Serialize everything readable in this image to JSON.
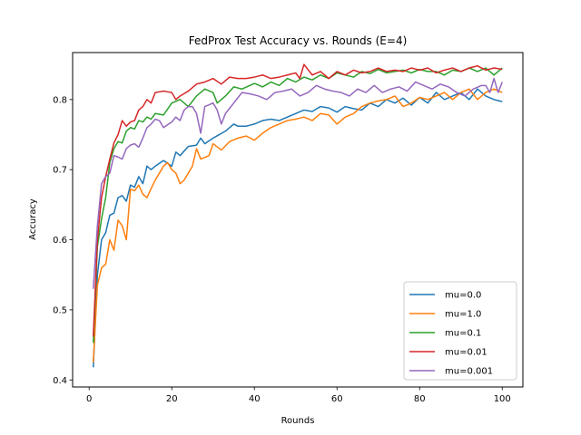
{
  "chart_data": {
    "type": "line",
    "title": "FedProx Test Accuracy vs. Rounds (E=4)",
    "xlabel": "Rounds",
    "ylabel": "Accuracy",
    "xlim": [
      -4,
      105
    ],
    "ylim": [
      0.39,
      0.867
    ],
    "xticks": [
      0,
      20,
      40,
      60,
      80,
      100
    ],
    "yticks": [
      0.4,
      0.5,
      0.6,
      0.7,
      0.8
    ],
    "xtick_labels": [
      "0",
      "20",
      "40",
      "60",
      "80",
      "100"
    ],
    "ytick_labels": [
      "0.4",
      "0.5",
      "0.6",
      "0.7",
      "0.8"
    ],
    "legend_position": "lower-right",
    "rounds": {
      "start": 1,
      "end": 100
    },
    "series": [
      {
        "name": "mu=0.0",
        "color": "#1f77b4",
        "anchors": [
          [
            1,
            0.418
          ],
          [
            2,
            0.55
          ],
          [
            3,
            0.6
          ],
          [
            4,
            0.61
          ],
          [
            5,
            0.635
          ],
          [
            6,
            0.638
          ],
          [
            7,
            0.66
          ],
          [
            8,
            0.663
          ],
          [
            9,
            0.655
          ],
          [
            10,
            0.678
          ],
          [
            11,
            0.675
          ],
          [
            12,
            0.69
          ],
          [
            13,
            0.68
          ],
          [
            14,
            0.705
          ],
          [
            15,
            0.7
          ],
          [
            16,
            0.705
          ],
          [
            18,
            0.713
          ],
          [
            20,
            0.705
          ],
          [
            21,
            0.725
          ],
          [
            22,
            0.72
          ],
          [
            24,
            0.733
          ],
          [
            26,
            0.735
          ],
          [
            27,
            0.745
          ],
          [
            28,
            0.737
          ],
          [
            30,
            0.745
          ],
          [
            33,
            0.755
          ],
          [
            35,
            0.765
          ],
          [
            36,
            0.762
          ],
          [
            38,
            0.762
          ],
          [
            40,
            0.765
          ],
          [
            42,
            0.77
          ],
          [
            44,
            0.772
          ],
          [
            46,
            0.77
          ],
          [
            48,
            0.775
          ],
          [
            50,
            0.78
          ],
          [
            52,
            0.785
          ],
          [
            54,
            0.783
          ],
          [
            56,
            0.79
          ],
          [
            58,
            0.788
          ],
          [
            60,
            0.782
          ],
          [
            62,
            0.79
          ],
          [
            64,
            0.787
          ],
          [
            66,
            0.785
          ],
          [
            68,
            0.795
          ],
          [
            70,
            0.79
          ],
          [
            72,
            0.8
          ],
          [
            74,
            0.795
          ],
          [
            76,
            0.802
          ],
          [
            78,
            0.792
          ],
          [
            80,
            0.803
          ],
          [
            82,
            0.795
          ],
          [
            84,
            0.81
          ],
          [
            86,
            0.8
          ],
          [
            88,
            0.805
          ],
          [
            90,
            0.81
          ],
          [
            92,
            0.8
          ],
          [
            94,
            0.815
          ],
          [
            96,
            0.805
          ],
          [
            98,
            0.8
          ],
          [
            100,
            0.797
          ]
        ]
      },
      {
        "name": "mu=1.0",
        "color": "#ff7f0e",
        "anchors": [
          [
            1,
            0.425
          ],
          [
            2,
            0.535
          ],
          [
            3,
            0.56
          ],
          [
            4,
            0.565
          ],
          [
            5,
            0.6
          ],
          [
            6,
            0.585
          ],
          [
            7,
            0.628
          ],
          [
            8,
            0.62
          ],
          [
            9,
            0.6
          ],
          [
            10,
            0.672
          ],
          [
            11,
            0.67
          ],
          [
            12,
            0.678
          ],
          [
            13,
            0.665
          ],
          [
            14,
            0.66
          ],
          [
            15,
            0.673
          ],
          [
            16,
            0.685
          ],
          [
            18,
            0.705
          ],
          [
            19,
            0.71
          ],
          [
            20,
            0.7
          ],
          [
            21,
            0.695
          ],
          [
            22,
            0.68
          ],
          [
            23,
            0.685
          ],
          [
            25,
            0.705
          ],
          [
            26,
            0.73
          ],
          [
            27,
            0.715
          ],
          [
            29,
            0.72
          ],
          [
            30,
            0.737
          ],
          [
            32,
            0.728
          ],
          [
            34,
            0.74
          ],
          [
            36,
            0.745
          ],
          [
            38,
            0.748
          ],
          [
            40,
            0.742
          ],
          [
            42,
            0.752
          ],
          [
            44,
            0.76
          ],
          [
            46,
            0.765
          ],
          [
            48,
            0.77
          ],
          [
            50,
            0.772
          ],
          [
            52,
            0.775
          ],
          [
            54,
            0.77
          ],
          [
            56,
            0.78
          ],
          [
            58,
            0.778
          ],
          [
            60,
            0.765
          ],
          [
            62,
            0.775
          ],
          [
            64,
            0.78
          ],
          [
            66,
            0.79
          ],
          [
            68,
            0.795
          ],
          [
            70,
            0.798
          ],
          [
            72,
            0.8
          ],
          [
            74,
            0.805
          ],
          [
            76,
            0.79
          ],
          [
            78,
            0.795
          ],
          [
            80,
            0.803
          ],
          [
            82,
            0.8
          ],
          [
            84,
            0.805
          ],
          [
            86,
            0.81
          ],
          [
            88,
            0.8
          ],
          [
            90,
            0.81
          ],
          [
            92,
            0.815
          ],
          [
            94,
            0.8
          ],
          [
            96,
            0.81
          ],
          [
            98,
            0.815
          ],
          [
            100,
            0.81
          ]
        ]
      },
      {
        "name": "mu=0.1",
        "color": "#2ca02c",
        "anchors": [
          [
            1,
            0.453
          ],
          [
            2,
            0.59
          ],
          [
            3,
            0.63
          ],
          [
            4,
            0.66
          ],
          [
            5,
            0.71
          ],
          [
            6,
            0.73
          ],
          [
            7,
            0.74
          ],
          [
            8,
            0.738
          ],
          [
            9,
            0.755
          ],
          [
            10,
            0.76
          ],
          [
            11,
            0.758
          ],
          [
            12,
            0.77
          ],
          [
            13,
            0.768
          ],
          [
            14,
            0.775
          ],
          [
            15,
            0.772
          ],
          [
            16,
            0.78
          ],
          [
            18,
            0.778
          ],
          [
            20,
            0.795
          ],
          [
            22,
            0.8
          ],
          [
            24,
            0.79
          ],
          [
            26,
            0.805
          ],
          [
            28,
            0.815
          ],
          [
            30,
            0.81
          ],
          [
            31,
            0.795
          ],
          [
            33,
            0.805
          ],
          [
            35,
            0.818
          ],
          [
            37,
            0.815
          ],
          [
            40,
            0.823
          ],
          [
            42,
            0.818
          ],
          [
            44,
            0.825
          ],
          [
            46,
            0.82
          ],
          [
            48,
            0.83
          ],
          [
            50,
            0.825
          ],
          [
            52,
            0.832
          ],
          [
            54,
            0.828
          ],
          [
            56,
            0.835
          ],
          [
            58,
            0.83
          ],
          [
            60,
            0.838
          ],
          [
            62,
            0.835
          ],
          [
            64,
            0.832
          ],
          [
            66,
            0.84
          ],
          [
            68,
            0.837
          ],
          [
            70,
            0.843
          ],
          [
            72,
            0.838
          ],
          [
            74,
            0.84
          ],
          [
            76,
            0.842
          ],
          [
            78,
            0.838
          ],
          [
            80,
            0.843
          ],
          [
            82,
            0.84
          ],
          [
            84,
            0.84
          ],
          [
            86,
            0.835
          ],
          [
            88,
            0.842
          ],
          [
            90,
            0.84
          ],
          [
            92,
            0.845
          ],
          [
            94,
            0.84
          ],
          [
            96,
            0.845
          ],
          [
            98,
            0.835
          ],
          [
            100,
            0.845
          ]
        ]
      },
      {
        "name": "mu=0.01",
        "color": "#d62728",
        "anchors": [
          [
            1,
            0.462
          ],
          [
            2,
            0.6
          ],
          [
            3,
            0.66
          ],
          [
            4,
            0.69
          ],
          [
            5,
            0.715
          ],
          [
            6,
            0.738
          ],
          [
            7,
            0.75
          ],
          [
            8,
            0.77
          ],
          [
            9,
            0.762
          ],
          [
            10,
            0.768
          ],
          [
            11,
            0.77
          ],
          [
            12,
            0.785
          ],
          [
            13,
            0.79
          ],
          [
            14,
            0.8
          ],
          [
            15,
            0.795
          ],
          [
            16,
            0.81
          ],
          [
            18,
            0.812
          ],
          [
            20,
            0.81
          ],
          [
            21,
            0.8
          ],
          [
            22,
            0.805
          ],
          [
            24,
            0.812
          ],
          [
            26,
            0.822
          ],
          [
            28,
            0.825
          ],
          [
            30,
            0.83
          ],
          [
            32,
            0.822
          ],
          [
            34,
            0.832
          ],
          [
            36,
            0.83
          ],
          [
            38,
            0.83
          ],
          [
            40,
            0.832
          ],
          [
            42,
            0.835
          ],
          [
            44,
            0.83
          ],
          [
            46,
            0.832
          ],
          [
            48,
            0.835
          ],
          [
            50,
            0.838
          ],
          [
            51,
            0.83
          ],
          [
            52,
            0.85
          ],
          [
            54,
            0.835
          ],
          [
            56,
            0.84
          ],
          [
            58,
            0.83
          ],
          [
            60,
            0.84
          ],
          [
            62,
            0.835
          ],
          [
            64,
            0.842
          ],
          [
            66,
            0.838
          ],
          [
            68,
            0.84
          ],
          [
            70,
            0.845
          ],
          [
            72,
            0.84
          ],
          [
            74,
            0.842
          ],
          [
            76,
            0.84
          ],
          [
            78,
            0.845
          ],
          [
            80,
            0.842
          ],
          [
            82,
            0.845
          ],
          [
            84,
            0.838
          ],
          [
            86,
            0.842
          ],
          [
            88,
            0.845
          ],
          [
            90,
            0.84
          ],
          [
            92,
            0.845
          ],
          [
            94,
            0.848
          ],
          [
            96,
            0.842
          ],
          [
            98,
            0.845
          ],
          [
            100,
            0.843
          ]
        ]
      },
      {
        "name": "mu=0.001",
        "color": "#9467bd",
        "anchors": [
          [
            1,
            0.53
          ],
          [
            2,
            0.62
          ],
          [
            3,
            0.68
          ],
          [
            4,
            0.69
          ],
          [
            5,
            0.695
          ],
          [
            6,
            0.72
          ],
          [
            7,
            0.718
          ],
          [
            8,
            0.715
          ],
          [
            9,
            0.73
          ],
          [
            10,
            0.735
          ],
          [
            11,
            0.737
          ],
          [
            12,
            0.732
          ],
          [
            13,
            0.745
          ],
          [
            14,
            0.76
          ],
          [
            15,
            0.765
          ],
          [
            16,
            0.772
          ],
          [
            17,
            0.77
          ],
          [
            18,
            0.76
          ],
          [
            20,
            0.768
          ],
          [
            21,
            0.775
          ],
          [
            22,
            0.77
          ],
          [
            23,
            0.785
          ],
          [
            24,
            0.79
          ],
          [
            25,
            0.79
          ],
          [
            26,
            0.78
          ],
          [
            27,
            0.752
          ],
          [
            28,
            0.79
          ],
          [
            30,
            0.795
          ],
          [
            31,
            0.785
          ],
          [
            32,
            0.765
          ],
          [
            33,
            0.78
          ],
          [
            35,
            0.795
          ],
          [
            37,
            0.81
          ],
          [
            39,
            0.808
          ],
          [
            41,
            0.805
          ],
          [
            43,
            0.8
          ],
          [
            45,
            0.81
          ],
          [
            47,
            0.812
          ],
          [
            49,
            0.815
          ],
          [
            51,
            0.805
          ],
          [
            53,
            0.81
          ],
          [
            55,
            0.82
          ],
          [
            57,
            0.815
          ],
          [
            59,
            0.812
          ],
          [
            61,
            0.81
          ],
          [
            63,
            0.805
          ],
          [
            65,
            0.815
          ],
          [
            67,
            0.81
          ],
          [
            69,
            0.82
          ],
          [
            71,
            0.81
          ],
          [
            73,
            0.815
          ],
          [
            75,
            0.818
          ],
          [
            77,
            0.812
          ],
          [
            79,
            0.825
          ],
          [
            81,
            0.82
          ],
          [
            83,
            0.815
          ],
          [
            85,
            0.822
          ],
          [
            87,
            0.818
          ],
          [
            89,
            0.81
          ],
          [
            91,
            0.805
          ],
          [
            93,
            0.815
          ],
          [
            95,
            0.82
          ],
          [
            96,
            0.82
          ],
          [
            97,
            0.81
          ],
          [
            98,
            0.83
          ],
          [
            99,
            0.81
          ],
          [
            100,
            0.825
          ]
        ]
      }
    ]
  }
}
